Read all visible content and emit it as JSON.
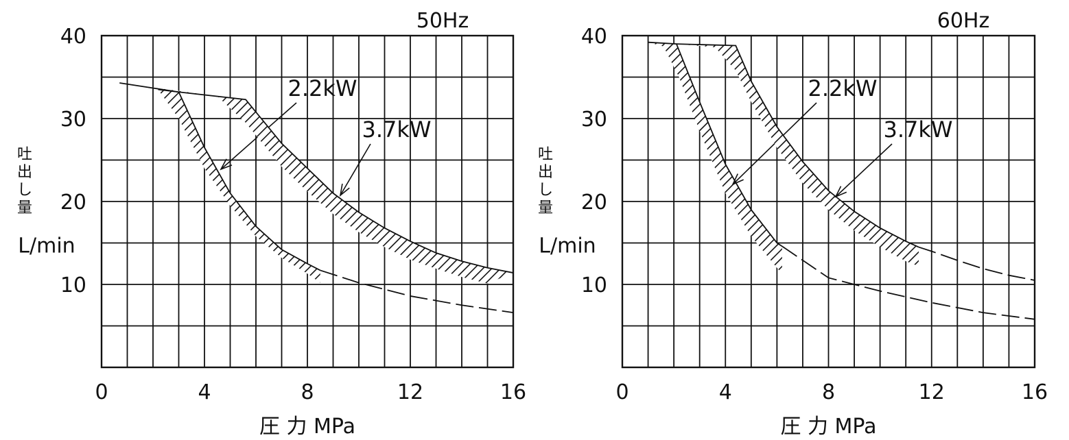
{
  "chart_data": [
    {
      "type": "area",
      "title": "50Hz",
      "xlabel": "圧 力 MPa",
      "ylabel_vertical": "吐出し量",
      "ylabel_unit": "L/min",
      "xlim": [
        0,
        16
      ],
      "ylim": [
        0,
        40
      ],
      "x_ticks": [
        "0",
        "4",
        "8",
        "12",
        "16"
      ],
      "y_ticks": [
        "10",
        "20",
        "30",
        "40"
      ],
      "grid": true,
      "series": [
        {
          "name": "2.2kW",
          "upper": [
            [
              2.2,
              33.5
            ],
            [
              3.0,
              33.2
            ],
            [
              4.0,
              26.5
            ],
            [
              5.0,
              21.0
            ],
            [
              6.0,
              17.0
            ],
            [
              7.0,
              14.2
            ],
            [
              8.0,
              12.5
            ],
            [
              8.5,
              11.7
            ]
          ],
          "lower": [
            [
              2.2,
              33.5
            ],
            [
              3.0,
              30.0
            ],
            [
              4.0,
              24.0
            ],
            [
              5.0,
              19.5
            ],
            [
              6.0,
              15.8
            ],
            [
              7.0,
              13.2
            ],
            [
              8.0,
              11.3
            ],
            [
              8.5,
              10.2
            ]
          ],
          "dashed_continuation": [
            [
              8.5,
              11.7
            ],
            [
              10.0,
              10.2
            ],
            [
              12.0,
              8.6
            ],
            [
              14.0,
              7.5
            ],
            [
              16.0,
              6.6
            ]
          ]
        },
        {
          "name": "3.7kW",
          "upper": [
            [
              0.7,
              34.3
            ],
            [
              3.0,
              33.2
            ],
            [
              5.6,
              32.3
            ],
            [
              7.0,
              27.0
            ],
            [
              8.0,
              24.0
            ],
            [
              9.0,
              21.0
            ],
            [
              10.0,
              18.7
            ],
            [
              11.0,
              16.8
            ],
            [
              12.0,
              15.2
            ],
            [
              13.0,
              13.8
            ],
            [
              14.0,
              12.8
            ],
            [
              15.0,
              12.0
            ],
            [
              16.0,
              11.4
            ]
          ],
          "lower": [
            [
              4.5,
              32.7
            ],
            [
              5.6,
              29.5
            ],
            [
              7.0,
              24.2
            ],
            [
              8.0,
              21.2
            ],
            [
              9.0,
              18.5
            ],
            [
              10.0,
              16.3
            ],
            [
              11.0,
              14.5
            ],
            [
              12.0,
              13.0
            ],
            [
              13.0,
              11.9
            ],
            [
              14.0,
              10.9
            ],
            [
              15.0,
              10.1
            ]
          ],
          "dashed_continuation": []
        }
      ]
    },
    {
      "type": "area",
      "title": "60Hz",
      "xlabel": "圧 力 MPa",
      "ylabel_vertical": "吐出し量",
      "ylabel_unit": "L/min",
      "xlim": [
        0,
        16
      ],
      "ylim": [
        0,
        40
      ],
      "x_ticks": [
        "0",
        "4",
        "8",
        "12",
        "16"
      ],
      "y_ticks": [
        "10",
        "20",
        "30",
        "40"
      ],
      "grid": true,
      "series": [
        {
          "name": "2.2kW",
          "upper": [
            [
              1.0,
              39.2
            ],
            [
              2.1,
              39.0
            ],
            [
              3.0,
              32.0
            ],
            [
              4.0,
              24.5
            ],
            [
              5.0,
              19.0
            ],
            [
              6.0,
              15.0
            ],
            [
              6.2,
              14.6
            ]
          ],
          "lower": [
            [
              1.6,
              38.7
            ],
            [
              2.2,
              35.0
            ],
            [
              3.0,
              28.5
            ],
            [
              4.0,
              21.0
            ],
            [
              5.0,
              15.8
            ],
            [
              6.0,
              12.0
            ],
            [
              6.2,
              11.3
            ]
          ],
          "dashed_continuation": [
            [
              6.2,
              14.6
            ],
            [
              8.0,
              10.8
            ],
            [
              10.0,
              9.2
            ],
            [
              12.0,
              7.8
            ],
            [
              14.0,
              6.6
            ],
            [
              16.0,
              5.8
            ]
          ]
        },
        {
          "name": "3.7kW",
          "upper": [
            [
              2.1,
              39.0
            ],
            [
              4.4,
              38.8
            ],
            [
              5.0,
              34.5
            ],
            [
              6.0,
              29.0
            ],
            [
              7.0,
              24.8
            ],
            [
              8.0,
              21.3
            ],
            [
              9.0,
              18.8
            ],
            [
              10.0,
              16.8
            ],
            [
              11.0,
              15.2
            ],
            [
              11.5,
              14.5
            ]
          ],
          "lower": [
            [
              3.6,
              38.6
            ],
            [
              4.4,
              35.8
            ],
            [
              5.0,
              32.0
            ],
            [
              6.0,
              26.5
            ],
            [
              7.0,
              22.2
            ],
            [
              8.0,
              19.0
            ],
            [
              9.0,
              16.5
            ],
            [
              10.0,
              14.5
            ],
            [
              11.0,
              12.8
            ],
            [
              11.5,
              12.2
            ]
          ],
          "dashed_continuation": [
            [
              11.5,
              14.5
            ],
            [
              12.0,
              14.0
            ],
            [
              13.0,
              12.9
            ],
            [
              14.0,
              11.9
            ],
            [
              15.0,
              11.1
            ],
            [
              16.0,
              10.5
            ]
          ]
        }
      ]
    }
  ]
}
